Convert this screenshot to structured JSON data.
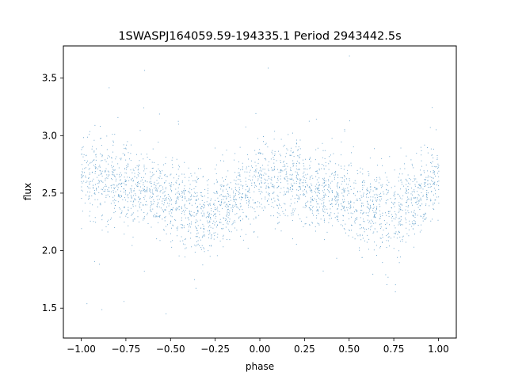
{
  "chart_data": {
    "type": "scatter",
    "title": "1SWASPJ164059.59-194335.1 Period 2943442.5s",
    "xlabel": "phase",
    "ylabel": "flux",
    "xlim": [
      -1.1,
      1.1
    ],
    "ylim": [
      1.24,
      3.78
    ],
    "xticks": [
      -1.0,
      -0.75,
      -0.5,
      -0.25,
      0.0,
      0.25,
      0.5,
      0.75,
      1.0
    ],
    "xtick_labels": [
      "−1.00",
      "−0.75",
      "−0.50",
      "−0.25",
      "0.00",
      "0.25",
      "0.50",
      "0.75",
      "1.00"
    ],
    "yticks": [
      1.5,
      2.0,
      2.5,
      3.0,
      3.5
    ],
    "ytick_labels": [
      "1.5",
      "2.0",
      "2.5",
      "3.0",
      "3.5"
    ],
    "grid": false,
    "legend": "none",
    "series": [
      {
        "color": "#1f77b4",
        "marker_size": 1,
        "description_profile": {
          "phase": [
            -1.0,
            -0.9,
            -0.8,
            -0.7,
            -0.6,
            -0.5,
            -0.4,
            -0.3,
            -0.2,
            -0.1,
            0.0,
            0.1,
            0.2,
            0.3,
            0.4,
            0.5,
            0.6,
            0.7,
            0.8,
            0.9,
            1.0
          ],
          "flux_center": [
            2.62,
            2.6,
            2.6,
            2.52,
            2.5,
            2.45,
            2.38,
            2.3,
            2.38,
            2.5,
            2.62,
            2.6,
            2.6,
            2.52,
            2.5,
            2.45,
            2.38,
            2.3,
            2.38,
            2.5,
            2.62
          ],
          "flux_spread": [
            0.32,
            0.3,
            0.3,
            0.28,
            0.28,
            0.28,
            0.3,
            0.32,
            0.3,
            0.3,
            0.32,
            0.3,
            0.3,
            0.28,
            0.28,
            0.28,
            0.3,
            0.32,
            0.3,
            0.3,
            0.32
          ]
        }
      }
    ]
  }
}
